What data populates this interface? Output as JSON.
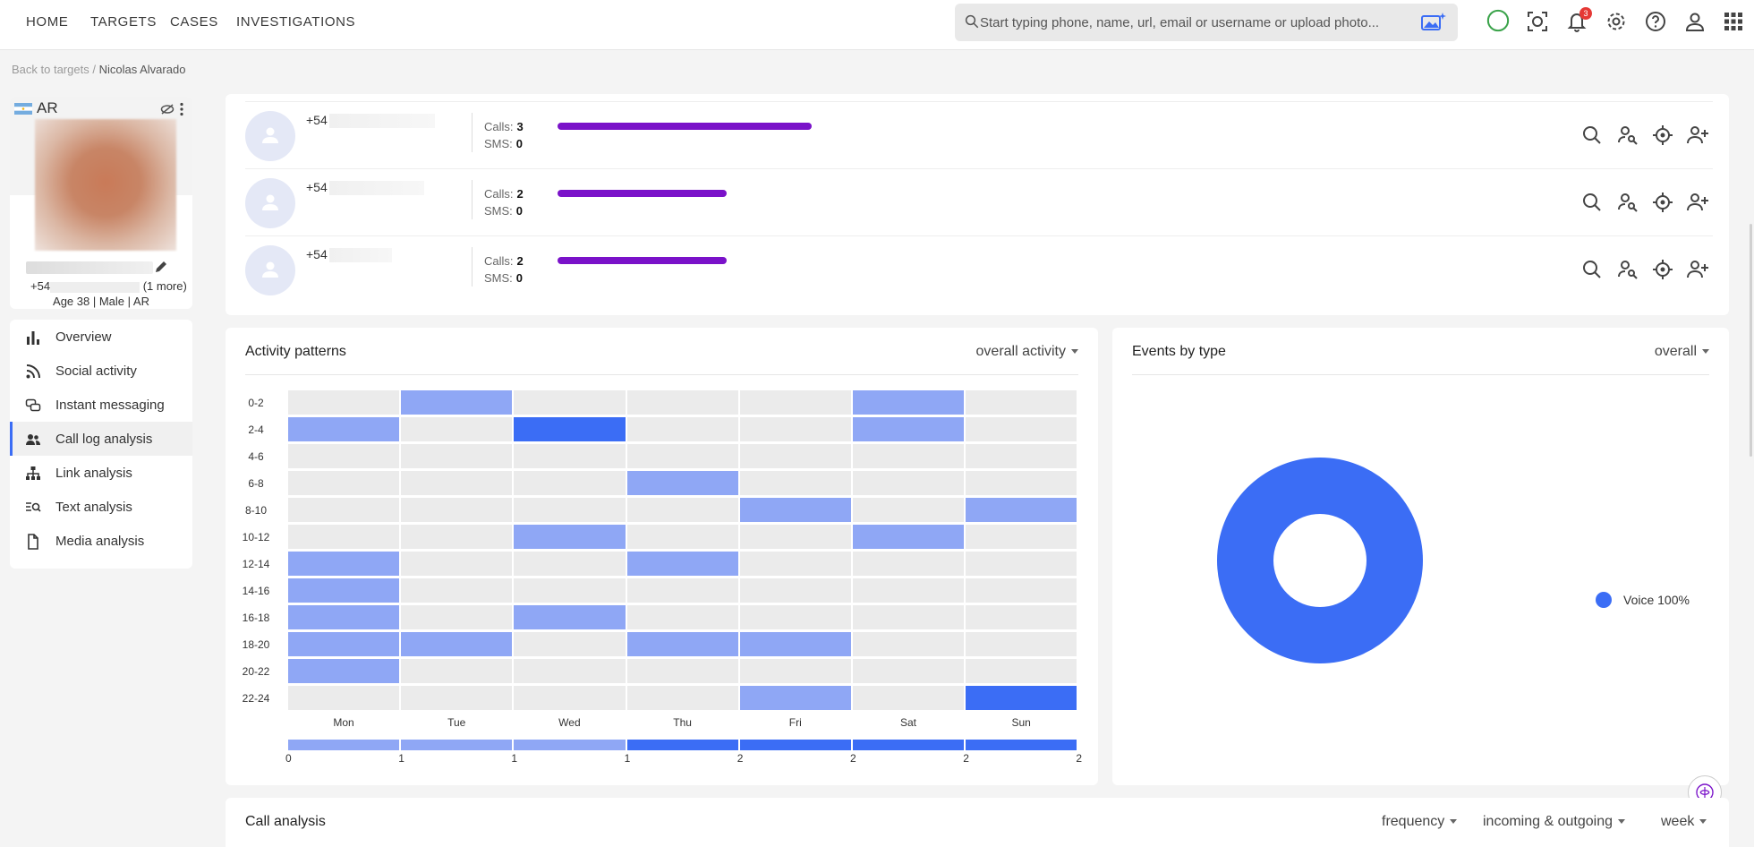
{
  "nav": {
    "links": [
      "HOME",
      "TARGETS",
      "CASES",
      "INVESTIGATIONS"
    ],
    "search_placeholder": "Start typing phone, name, url, email or username or upload photo...",
    "notification_count": "3"
  },
  "breadcrumb": {
    "back": "Back to targets",
    "separator": "/",
    "current": "Nicolas Alvarado"
  },
  "profile": {
    "country": "AR",
    "phone_prefix": "+54",
    "more": "(1 more)",
    "meta": "Age 38 | Male | AR"
  },
  "sidebar": {
    "items": [
      {
        "label": "Overview",
        "icon": "bar-chart-icon"
      },
      {
        "label": "Social activity",
        "icon": "rss-icon"
      },
      {
        "label": "Instant messaging",
        "icon": "chat-icon"
      },
      {
        "label": "Call log analysis",
        "icon": "people-icon",
        "active": true
      },
      {
        "label": "Link analysis",
        "icon": "hierarchy-icon"
      },
      {
        "label": "Text analysis",
        "icon": "text-search-icon"
      },
      {
        "label": "Media analysis",
        "icon": "file-icon"
      }
    ]
  },
  "contacts": [
    {
      "phone": "+54",
      "calls_label": "Calls:",
      "calls": "3",
      "sms_label": "SMS:",
      "sms": "0"
    },
    {
      "phone": "+54",
      "calls_label": "Calls:",
      "calls": "2",
      "sms_label": "SMS:",
      "sms": "0"
    },
    {
      "phone": "+54",
      "calls_label": "Calls:",
      "calls": "2",
      "sms_label": "SMS:",
      "sms": "0"
    }
  ],
  "activity": {
    "title": "Activity patterns",
    "dropdown": "overall activity",
    "rows": [
      "0-2",
      "2-4",
      "4-6",
      "6-8",
      "8-10",
      "10-12",
      "12-14",
      "14-16",
      "16-18",
      "18-20",
      "20-22",
      "22-24"
    ],
    "days": [
      "Mon",
      "Tue",
      "Wed",
      "Thu",
      "Fri",
      "Sat",
      "Sun"
    ],
    "grid": [
      [
        0,
        1,
        0,
        0,
        0,
        1,
        0
      ],
      [
        1,
        0,
        2,
        0,
        0,
        1,
        0
      ],
      [
        0,
        0,
        0,
        0,
        0,
        0,
        0
      ],
      [
        0,
        0,
        0,
        1,
        0,
        0,
        0
      ],
      [
        0,
        0,
        0,
        0,
        1,
        0,
        1
      ],
      [
        0,
        0,
        1,
        0,
        0,
        1,
        0
      ],
      [
        1,
        0,
        0,
        1,
        0,
        0,
        0
      ],
      [
        1,
        0,
        0,
        0,
        0,
        0,
        0
      ],
      [
        1,
        0,
        1,
        0,
        0,
        0,
        0
      ],
      [
        1,
        1,
        0,
        1,
        1,
        0,
        0
      ],
      [
        1,
        0,
        0,
        0,
        0,
        0,
        0
      ],
      [
        0,
        0,
        0,
        0,
        1,
        0,
        2
      ]
    ],
    "legend_ticks": [
      "0",
      "1",
      "1",
      "1",
      "2",
      "2",
      "2",
      "2"
    ]
  },
  "events": {
    "title": "Events by type",
    "dropdown": "overall",
    "legend_label": "Voice 100%"
  },
  "call_analysis": {
    "title": "Call analysis",
    "dropdowns": [
      "frequency",
      "incoming & outgoing",
      "week"
    ]
  },
  "colors": {
    "accent": "#3b6df5",
    "light": "#8fa7f5",
    "empty": "#ebebeb",
    "bar": "#7a12c9"
  },
  "chart_data": [
    {
      "type": "heatmap",
      "title": "Activity patterns",
      "x": [
        "Mon",
        "Tue",
        "Wed",
        "Thu",
        "Fri",
        "Sat",
        "Sun"
      ],
      "y": [
        "0-2",
        "2-4",
        "4-6",
        "6-8",
        "8-10",
        "10-12",
        "12-14",
        "14-16",
        "16-18",
        "18-20",
        "20-22",
        "22-24"
      ],
      "values": [
        [
          0,
          1,
          0,
          0,
          0,
          1,
          0
        ],
        [
          1,
          0,
          2,
          0,
          0,
          1,
          0
        ],
        [
          0,
          0,
          0,
          0,
          0,
          0,
          0
        ],
        [
          0,
          0,
          0,
          1,
          0,
          0,
          0
        ],
        [
          0,
          0,
          0,
          0,
          1,
          0,
          1
        ],
        [
          0,
          0,
          1,
          0,
          0,
          1,
          0
        ],
        [
          1,
          0,
          0,
          1,
          0,
          0,
          0
        ],
        [
          1,
          0,
          0,
          0,
          0,
          0,
          0
        ],
        [
          1,
          0,
          1,
          0,
          0,
          0,
          0
        ],
        [
          1,
          1,
          0,
          1,
          1,
          0,
          0
        ],
        [
          1,
          0,
          0,
          0,
          0,
          0,
          0
        ],
        [
          0,
          0,
          0,
          0,
          1,
          0,
          2
        ]
      ]
    },
    {
      "type": "pie",
      "title": "Events by type",
      "categories": [
        "Voice"
      ],
      "values": [
        100
      ]
    }
  ]
}
